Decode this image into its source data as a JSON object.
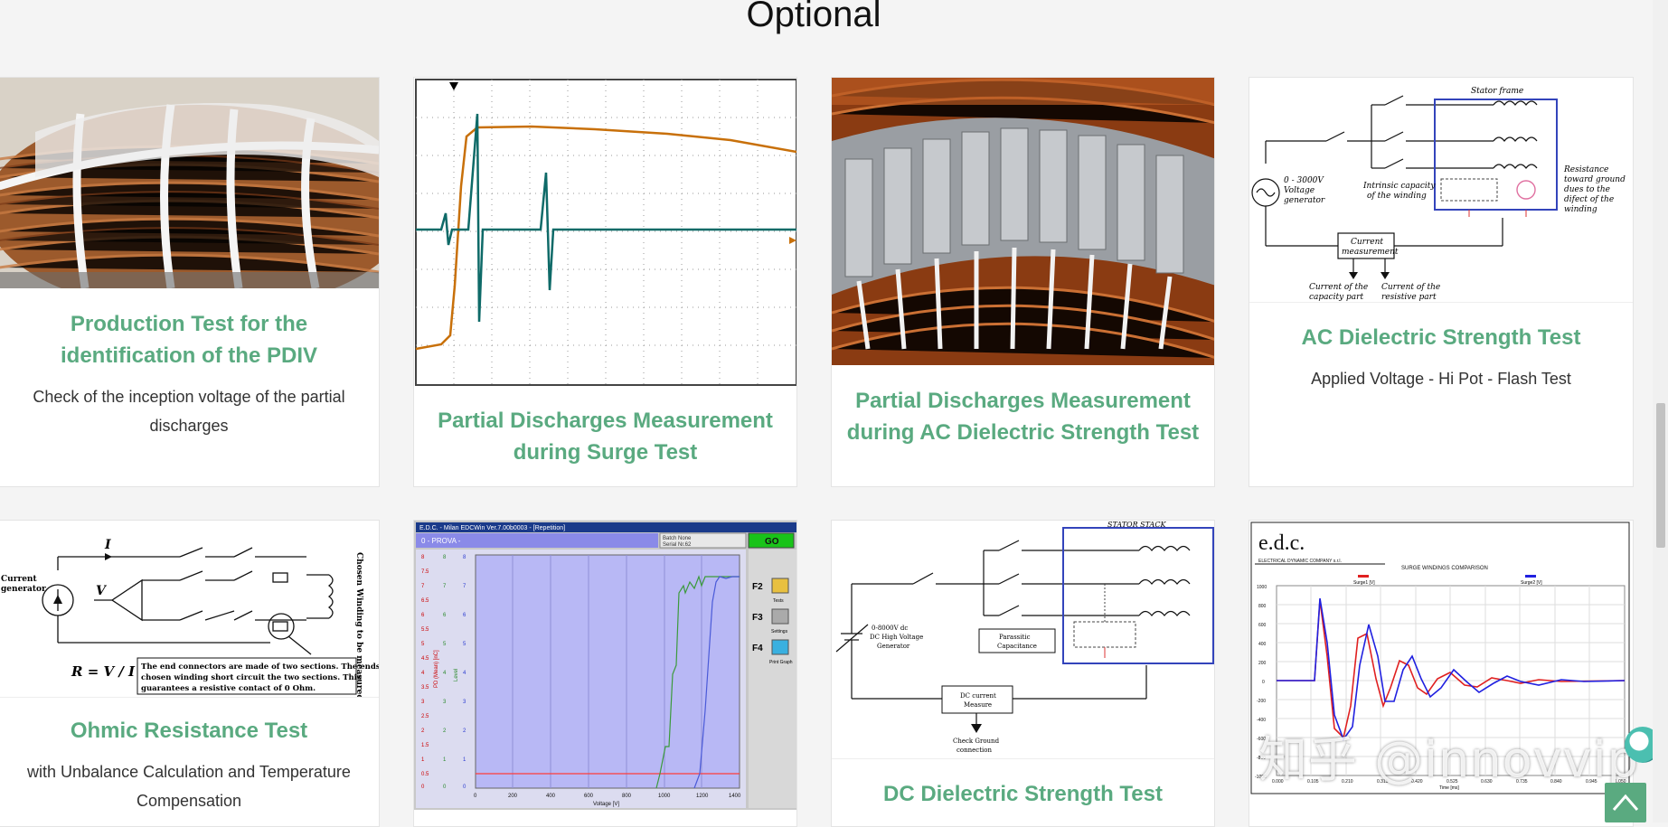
{
  "section": {
    "title": "Optional"
  },
  "cards": [
    {
      "title": "Production Test for the identification of the PDIV",
      "description": "Check of the inception voltage of the partial discharges",
      "image": "coil-winding-photo"
    },
    {
      "title": "Partial Discharges Measurement during Surge Test",
      "description": "",
      "image": "oscilloscope-waveform"
    },
    {
      "title": "Partial Discharges Measurement during AC Dielectric Strength Test",
      "description": "",
      "image": "stator-winding-photo"
    },
    {
      "title": "AC Dielectric Strength Test",
      "description": "Applied Voltage - Hi Pot - Flash Test",
      "image": "ac-hipot-circuit-diagram"
    },
    {
      "title": "Ohmic Resistance Test",
      "description": "with Unbalance Calculation and Temperature Compensation",
      "image": "ohmic-resistance-diagram"
    },
    {
      "title": "",
      "description": "",
      "image": "software-plot-screenshot"
    },
    {
      "title": "DC Dielectric Strength Test",
      "description": "",
      "image": "dc-hipot-circuit-diagram"
    },
    {
      "title": "",
      "description": "",
      "image": "surge-comparison-plot"
    }
  ],
  "diagram_texts": {
    "ac": {
      "stator_frame": "Stator frame",
      "generator": [
        "0 - 3000V",
        "Voltage",
        "generator"
      ],
      "capacity": [
        "Intrinsic capacity",
        "of the winding"
      ],
      "resistance": [
        "Resistance",
        "toward ground",
        "dues to the",
        "difect of the",
        "winding"
      ],
      "current": [
        "Current",
        "measurement"
      ],
      "cap_part": [
        "Current of the",
        "capacity part"
      ],
      "res_part": [
        "Current of the",
        "resistive part"
      ]
    },
    "ohmic": {
      "current_gen": [
        "Current",
        "generator"
      ],
      "I": "I",
      "V": "V",
      "formula": "R = V / I",
      "note": [
        "The end connectors are made of two sections. The ends of the",
        "chosen winding short circuit the two sections. This",
        "guarantees a resistive contact of 0 Ohm."
      ],
      "side": "Chosen Winding to be measured."
    },
    "dc": {
      "stator_stack": "STATOR STACK",
      "generator": [
        "0-8000V dc",
        "DC High Voltage",
        "Generator"
      ],
      "parasitic": [
        "Parassitic",
        "Capacitance"
      ],
      "dc_current": [
        "DC current",
        "Measure"
      ],
      "ground": [
        "Check Ground",
        "connection"
      ]
    },
    "software": {
      "window_title": "E.D.C. - Milan EDCWin Ver.7.00b0003 - [Repetition]",
      "prova": "0 - PROVA -",
      "batch": "Batch None",
      "serial": "Serial Nr.62",
      "go": "GO",
      "f2": "F2",
      "f2_label": "Tests",
      "f3": "F3",
      "f3_label": "Settings",
      "f4": "F4",
      "f4_label": "Print Graph",
      "y_ticks": [
        "8",
        "7.5",
        "7",
        "6.5",
        "6",
        "5.5",
        "5",
        "4.5",
        "4",
        "3.5",
        "3",
        "2.5",
        "2",
        "1.5",
        "1",
        "0.5",
        "0"
      ],
      "x_ticks": [
        "0",
        "200",
        "400",
        "600",
        "800",
        "1000",
        "1200",
        "1400"
      ],
      "x_label": "Voltage [V]",
      "y_label_left": "PD (Mean) [nC]",
      "y_label_mid": "Level"
    },
    "surge": {
      "brand": "e.d.c.",
      "company": "ELECTRICAL DYNAMIC COMPANY s.r.l.",
      "chart_title": "SURGE WINDINGS COMPARISON",
      "legend_a": "Surge1 [V]",
      "legend_b": "Surge2 [V]",
      "y_ticks": [
        "1000",
        "800",
        "600",
        "400",
        "200",
        "0",
        "-200",
        "-400",
        "-600",
        "-800",
        "-1000"
      ],
      "x_ticks": [
        "0.000",
        "0.105",
        "0.210",
        "0.315",
        "0.420",
        "0.525",
        "0.630",
        "0.735",
        "0.840",
        "0.945",
        "1.050"
      ],
      "x_label": "Time [ms]"
    }
  },
  "watermark": {
    "text": "知乎 @innovvip"
  },
  "colors": {
    "accent": "#5aaa80",
    "background": "#f4f4f4"
  }
}
